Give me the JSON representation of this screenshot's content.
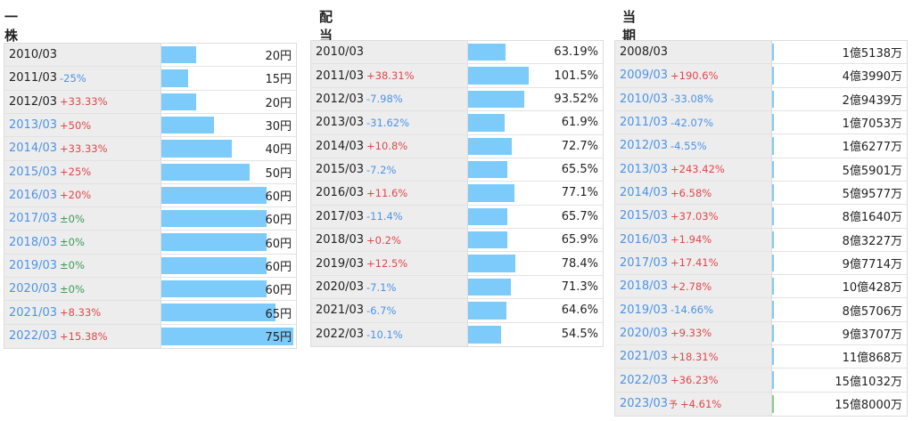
{
  "colors": {
    "bar": "#7ccbfb",
    "forecast_bar": "#88cc88",
    "up": "#e0474c",
    "down": "#4b93e8",
    "flat": "#3c9a5a",
    "year_plain": "#222222",
    "year_link": "#4b93e8"
  },
  "chart_data": [
    {
      "type": "bar",
      "title": "一株配当",
      "categories": [
        "2010/03",
        "2011/03",
        "2012/03",
        "2013/03",
        "2014/03",
        "2015/03",
        "2016/03",
        "2017/03",
        "2018/03",
        "2019/03",
        "2020/03",
        "2021/03",
        "2022/03"
      ],
      "changes": [
        "",
        "-25%",
        "+33.33%",
        "+50%",
        "+33.33%",
        "+25%",
        "+20%",
        "±0%",
        "±0%",
        "±0%",
        "±0%",
        "+8.33%",
        "+15.38%"
      ],
      "values": [
        20,
        15,
        20,
        30,
        40,
        50,
        60,
        60,
        60,
        60,
        60,
        65,
        75
      ],
      "labels": [
        "20円",
        "15円",
        "20円",
        "30円",
        "40円",
        "50円",
        "60円",
        "60円",
        "60円",
        "60円",
        "60円",
        "65円",
        "75円"
      ],
      "xlim": [
        0,
        75
      ]
    },
    {
      "type": "bar",
      "title": "配当性向",
      "categories": [
        "2010/03",
        "2011/03",
        "2012/03",
        "2013/03",
        "2014/03",
        "2015/03",
        "2016/03",
        "2017/03",
        "2018/03",
        "2019/03",
        "2020/03",
        "2021/03",
        "2022/03"
      ],
      "changes": [
        "",
        "+38.31%",
        "-7.98%",
        "-31.62%",
        "+10.8%",
        "-7.2%",
        "+11.6%",
        "-11.4%",
        "+0.2%",
        "+12.5%",
        "-7.1%",
        "-6.7%",
        "-10.1%"
      ],
      "values": [
        63.19,
        101.5,
        93.52,
        61.9,
        72.7,
        65.5,
        77.1,
        65.7,
        65.9,
        78.4,
        71.3,
        64.6,
        54.5
      ],
      "labels": [
        "63.19%",
        "101.5%",
        "93.52%",
        "61.9%",
        "72.7%",
        "65.5%",
        "77.1%",
        "65.7%",
        "65.9%",
        "78.4%",
        "71.3%",
        "64.6%",
        "54.5%"
      ],
      "xlim": [
        0,
        101.5
      ]
    },
    {
      "type": "bar",
      "title": "当期純利益",
      "categories": [
        "2008/03",
        "2009/03",
        "2010/03",
        "2011/03",
        "2012/03",
        "2013/03",
        "2014/03",
        "2015/03",
        "2016/03",
        "2017/03",
        "2018/03",
        "2019/03",
        "2020/03",
        "2021/03",
        "2022/03",
        "2023/03"
      ],
      "forecast_mark": "予",
      "changes": [
        "",
        "+190.6%",
        "-33.08%",
        "-42.07%",
        "-4.55%",
        "+243.42%",
        "+6.58%",
        "+37.03%",
        "+1.94%",
        "+17.41%",
        "+2.78%",
        "-14.66%",
        "+9.33%",
        "+18.31%",
        "+36.23%",
        "+4.61%"
      ],
      "values": [
        151380000,
        439900000,
        294390000,
        170530000,
        162770000,
        559010000,
        595770000,
        816400000,
        832270000,
        977140000,
        1004280000,
        857060000,
        937070000,
        1108680000,
        1510320000,
        1580000000
      ],
      "labels": [
        "1億5138万",
        "4億3990万",
        "2億9439万",
        "1億7053万",
        "1億6277万",
        "5億5901万",
        "5億9577万",
        "8億1640万",
        "8億3227万",
        "9億7714万",
        "10億428万",
        "8億5706万",
        "9億3707万",
        "11億868万",
        "15億1032万",
        "15億8000万"
      ],
      "forecast": [
        false,
        false,
        false,
        false,
        false,
        false,
        false,
        false,
        false,
        false,
        false,
        false,
        false,
        false,
        false,
        true
      ],
      "xlim": [
        0,
        15000000000
      ]
    }
  ]
}
